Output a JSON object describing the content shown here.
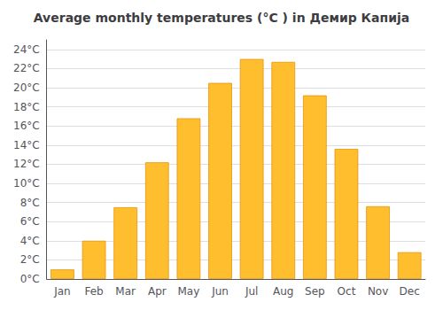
{
  "chart_data": {
    "type": "bar",
    "title": "Average monthly temperatures (°C ) in Демир Капија",
    "categories": [
      "Jan",
      "Feb",
      "Mar",
      "Apr",
      "May",
      "Jun",
      "Jul",
      "Aug",
      "Sep",
      "Oct",
      "Nov",
      "Dec"
    ],
    "values": [
      1.0,
      4.0,
      7.5,
      12.2,
      16.8,
      20.5,
      23.0,
      22.7,
      19.2,
      13.6,
      7.6,
      2.8
    ],
    "color": "#FFBE2D",
    "ylim": [
      0,
      25
    ],
    "yticks": [
      {
        "value": 0,
        "label": "0°C"
      },
      {
        "value": 2,
        "label": "2°C"
      },
      {
        "value": 4,
        "label": "4°C"
      },
      {
        "value": 6,
        "label": "6°C"
      },
      {
        "value": 8,
        "label": "8°C"
      },
      {
        "value": 10,
        "label": "10°C"
      },
      {
        "value": 12,
        "label": "12°C"
      },
      {
        "value": 14,
        "label": "14°C"
      },
      {
        "value": 16,
        "label": "16°C"
      },
      {
        "value": 18,
        "label": "18°C"
      },
      {
        "value": 20,
        "label": "20°C"
      },
      {
        "value": 22,
        "label": "22°C"
      },
      {
        "value": 24,
        "label": "24°C"
      }
    ],
    "grid": true
  }
}
